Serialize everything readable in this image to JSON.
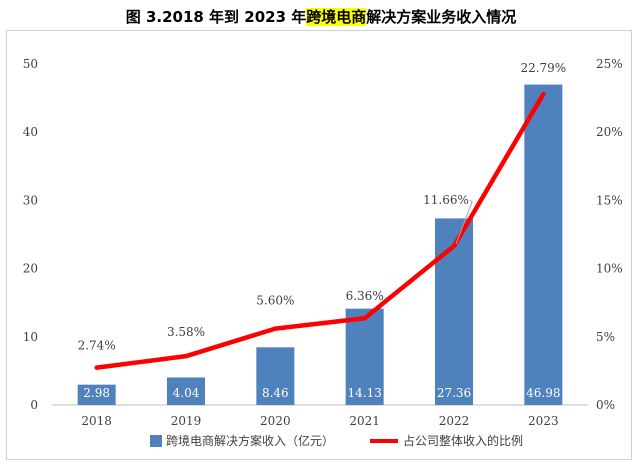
{
  "title": {
    "prefix": "图 3.2018 年到 2023 年",
    "highlight": "跨境电商",
    "suffix": "解决方案业务收入情况"
  },
  "chart_data": {
    "type": "bar+line",
    "categories": [
      "2018",
      "2019",
      "2020",
      "2021",
      "2022",
      "2023"
    ],
    "series": [
      {
        "name": "跨境电商解决方案收入（亿元）",
        "kind": "bar",
        "axis": "left",
        "color": "#4f81bd",
        "values": [
          2.98,
          4.04,
          8.46,
          14.13,
          27.36,
          46.98
        ],
        "labels": [
          "2.98",
          "4.04",
          "8.46",
          "14.13",
          "27.36",
          "46.98"
        ]
      },
      {
        "name": "占公司整体收入的比例",
        "kind": "line",
        "axis": "right",
        "color": "#ff0000",
        "values": [
          2.74,
          3.58,
          5.6,
          6.36,
          11.66,
          22.79
        ],
        "labels": [
          "2.74%",
          "3.58%",
          "5.60%",
          "6.36%",
          "11.66%",
          "22.79%"
        ]
      }
    ],
    "y_left": {
      "min": 0,
      "max": 50,
      "ticks": [
        "0",
        "10",
        "20",
        "30",
        "40",
        "50"
      ]
    },
    "y_right": {
      "min": 0,
      "max": 25,
      "ticks": [
        "0%",
        "5%",
        "10%",
        "15%",
        "20%",
        "25%"
      ]
    },
    "legend_position": "bottom"
  }
}
